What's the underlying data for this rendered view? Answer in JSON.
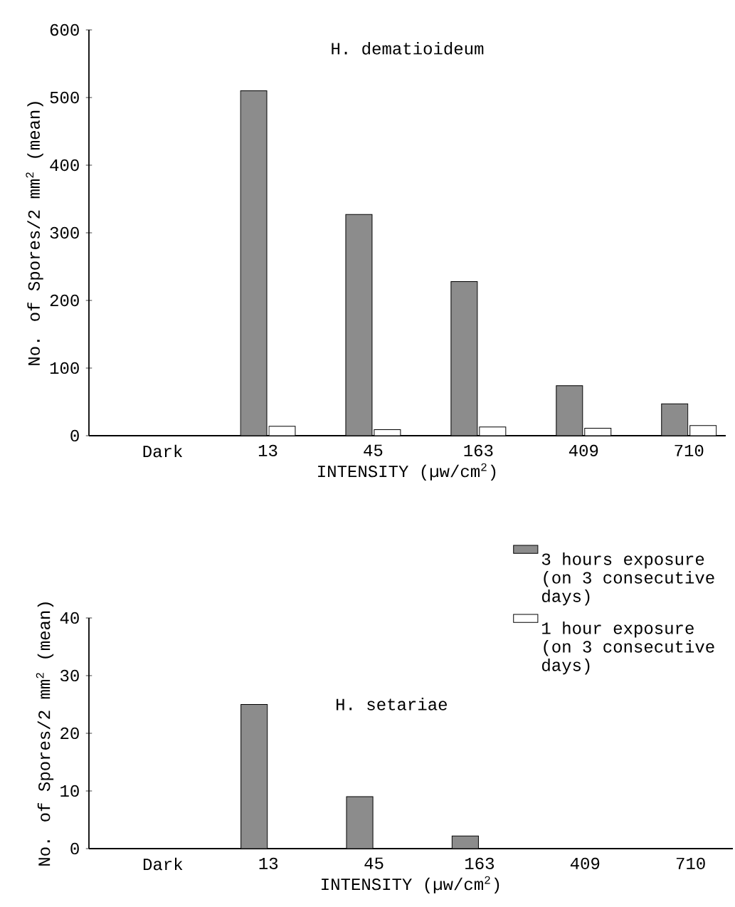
{
  "chart_data": [
    {
      "type": "bar",
      "title": "H. dematioideum",
      "xlabel": "INTENSITY (µw/cm$^{2}$)",
      "ylabel": "No. of Spores/2 mm$^{2}$ (mean)",
      "categories": [
        "Dark",
        "13",
        "45",
        "163",
        "409",
        "710"
      ],
      "series": [
        {
          "color": "#8c8c8c",
          "values": [
            0,
            510,
            327,
            228,
            74,
            47
          ]
        },
        {
          "color": "#ffffff",
          "values": [
            0,
            14,
            9,
            13,
            11,
            15
          ]
        }
      ],
      "ylim": [
        0,
        600
      ],
      "yticks": [
        0,
        100,
        200,
        300,
        400,
        500,
        600
      ]
    },
    {
      "type": "bar",
      "title": "H. setariae",
      "xlabel": "INTENSITY (µw/cm$^{2}$)",
      "ylabel": "No. of Spores/2 mm$^{2}$ (mean)",
      "categories": [
        "Dark",
        "13",
        "45",
        "163",
        "409",
        "710"
      ],
      "series": [
        {
          "name": "3 hours exposure (on 3 consecutive days)",
          "color": "#8c8c8c",
          "values": [
            0,
            25,
            9,
            2.2,
            0,
            0
          ]
        },
        {
          "name": "1 hour exposure (on 3 consecutive days)",
          "color": "#ffffff",
          "values": [
            0,
            0,
            0,
            0,
            0,
            0
          ]
        }
      ],
      "ylim": [
        0,
        40
      ],
      "yticks": [
        0,
        10,
        20,
        30,
        40
      ],
      "legend": "top right"
    }
  ]
}
